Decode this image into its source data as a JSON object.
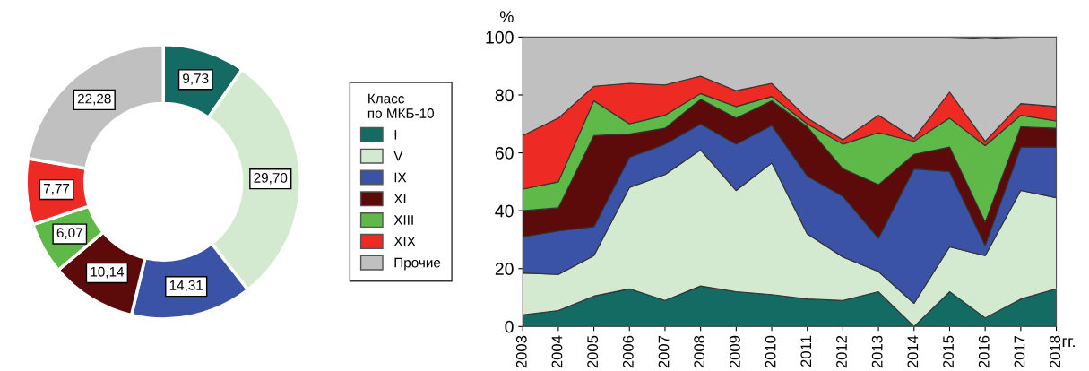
{
  "chart_data": [
    {
      "type": "donut",
      "legend_title": "Класс\nпо МКБ-10",
      "legend": "right",
      "categories": [
        "I",
        "V",
        "IX",
        "XI",
        "XIII",
        "XIX",
        "Прочие"
      ],
      "values": [
        9.73,
        29.7,
        14.31,
        10.14,
        6.07,
        7.77,
        22.28
      ],
      "value_labels": [
        "9,73",
        "29,70",
        "14,31",
        "10,14",
        "6,07",
        "7,77",
        "22,28"
      ],
      "colors": [
        "#136b63",
        "#d4ead0",
        "#3a53a6",
        "#5c0a0a",
        "#5fb948",
        "#ee2a24",
        "#c0c0c0"
      ]
    },
    {
      "type": "area",
      "stacked": true,
      "ylabel": "%",
      "xlabel": "гг.",
      "legend": false,
      "x": [
        2003,
        2004,
        2005,
        2006,
        2007,
        2008,
        2009,
        2010,
        2011,
        2012,
        2013,
        2014,
        2015,
        2016,
        2017,
        2018
      ],
      "xlim": [
        2003,
        2018
      ],
      "xticks": [
        2003,
        2004,
        2005,
        2006,
        2007,
        2008,
        2009,
        2010,
        2011,
        2012,
        2013,
        2014,
        2015,
        2016,
        2017,
        2018
      ],
      "ylim": [
        0,
        100
      ],
      "yticks": [
        0,
        20,
        40,
        60,
        80,
        100
      ],
      "series": [
        {
          "color": "#136b63",
          "values": [
            4,
            5.5,
            10.5,
            13,
            9,
            14,
            12,
            11,
            9.5,
            9,
            12,
            0,
            12,
            3,
            9.5,
            13
          ]
        },
        {
          "color": "#d4ead0",
          "values": [
            14.5,
            12.5,
            14,
            35,
            43.5,
            47,
            35,
            45.5,
            22.5,
            15,
            7,
            8,
            15.5,
            21.5,
            37.5,
            31.5
          ]
        },
        {
          "color": "#3a53a6",
          "values": [
            12.5,
            15,
            10,
            10.5,
            10.5,
            9,
            16,
            13,
            20,
            21,
            11.5,
            46.5,
            26,
            3.5,
            15,
            17.5
          ]
        },
        {
          "color": "#5c0a0a",
          "values": [
            9,
            8,
            31.5,
            8,
            5.5,
            8.5,
            9,
            8.5,
            17,
            9.5,
            18.5,
            5,
            8.5,
            8,
            7,
            6.5
          ]
        },
        {
          "color": "#5fb948",
          "values": [
            7.5,
            9,
            12,
            3.5,
            4.5,
            2,
            4,
            1.5,
            1,
            8.5,
            18,
            4.5,
            10,
            26.5,
            4,
            2.5
          ]
        },
        {
          "color": "#ee2a24",
          "values": [
            18.5,
            22,
            5,
            14,
            10.5,
            6,
            5.5,
            4.5,
            2,
            1.5,
            6,
            1,
            9,
            1.5,
            4,
            5
          ]
        },
        {
          "color": "#c0c0c0",
          "values": [
            34,
            28,
            17,
            16,
            16.5,
            13.5,
            18.5,
            16,
            28,
            35.5,
            27,
            35,
            19,
            35.5,
            23,
            24
          ]
        }
      ]
    }
  ]
}
